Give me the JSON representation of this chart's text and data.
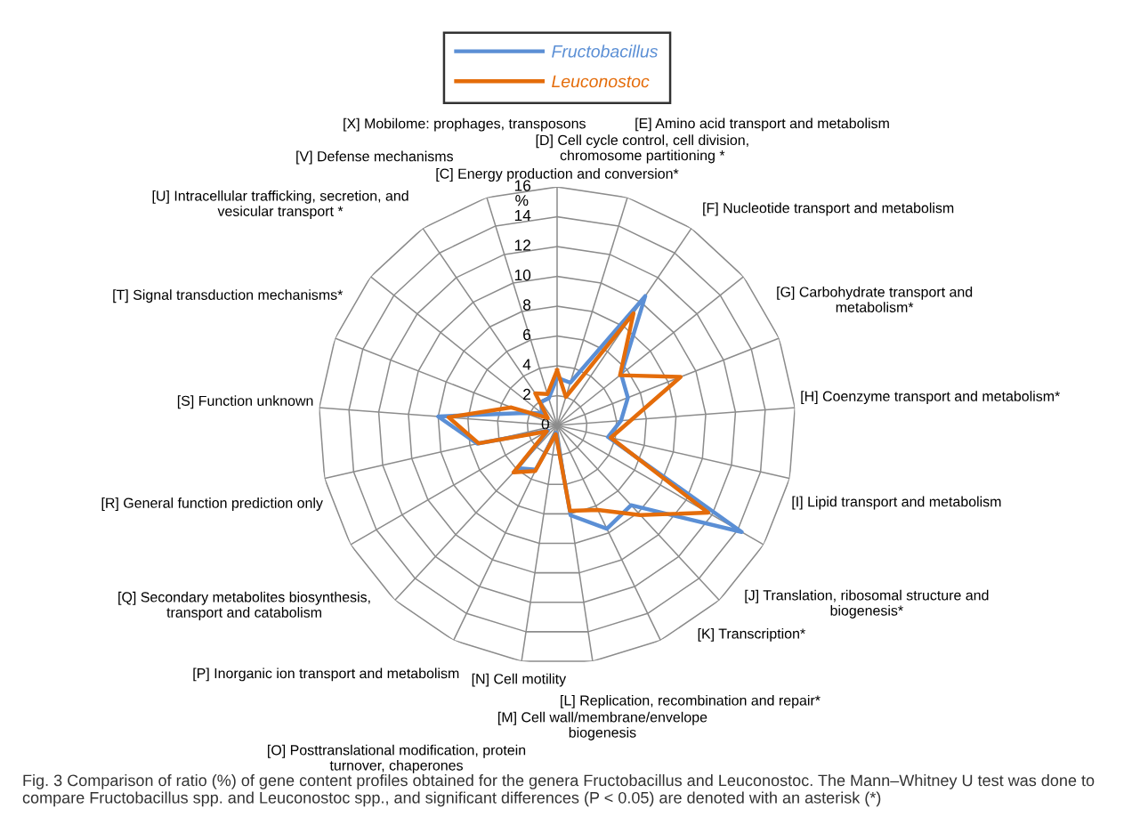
{
  "chart_data": {
    "type": "radar",
    "categories": [
      "[C] Energy production and conversion*",
      "[D] Cell cycle control, cell division,\nchromosome partitioning *",
      "[E] Amino acid transport and metabolism",
      "[F] Nucleotide transport and metabolism",
      "[G] Carbohydrate transport and\nmetabolism*",
      "[H] Coenzyme transport and metabolism*",
      "[I] Lipid transport and metabolism",
      "[J] Translation, ribosomal structure and\nbiogenesis*",
      "[K] Transcription*",
      "[L] Replication, recombination and repair*",
      "[M] Cell wall/membrane/envelope\nbiogenesis",
      "[N] Cell motility",
      "[O] Posttranslational modification, protein\nturnover, chaperones",
      "[P] Inorganic ion transport and metabolism",
      "[Q] Secondary metabolites biosynthesis,\ntransport and catabolism",
      "[R] General function prediction only",
      "[S] Function unknown",
      "[T] Signal transduction mechanisms*",
      "[U] Intracellular trafficking, secretion, and\nvesicular transport *",
      "[V] Defense mechanisms",
      "[X] Mobilome: prophages, transposons"
    ],
    "series": [
      {
        "name": "Fructobacillus",
        "color": "#5b8fd5",
        "values": [
          3.2,
          3.0,
          10.5,
          5.5,
          5.1,
          4.3,
          3.5,
          14.3,
          7.3,
          7.7,
          6.1,
          0.5,
          3.3,
          3.9,
          0.7,
          5.5,
          8.0,
          2.3,
          1.3,
          1.9,
          1.9
        ]
      },
      {
        "name": "Leuconostoc",
        "color": "#e46c0a",
        "values": [
          3.7,
          2.0,
          9.1,
          5.4,
          8.9,
          5.0,
          3.7,
          11.7,
          8.2,
          6.3,
          5.8,
          0.6,
          3.4,
          4.3,
          0.8,
          5.4,
          7.3,
          3.3,
          0.8,
          2.6,
          2.2
        ]
      }
    ],
    "ylim": [
      0,
      16
    ],
    "yticks": [
      0,
      2,
      4,
      6,
      8,
      10,
      12,
      14,
      16
    ],
    "ylabel": "%",
    "grid": true,
    "legend": "top",
    "marker": "none",
    "line_style": "solid",
    "annotations": [
      "Fig. 3 Comparison of ratio (%) of gene content profiles obtained for the genera Fructobacillus and Leuconostoc. The Mann–Whitney U test was done to compare Fructobacillus spp. and Leuconostoc spp., and significant differences (P < 0.05) are denoted with an asterisk (*)"
    ]
  }
}
